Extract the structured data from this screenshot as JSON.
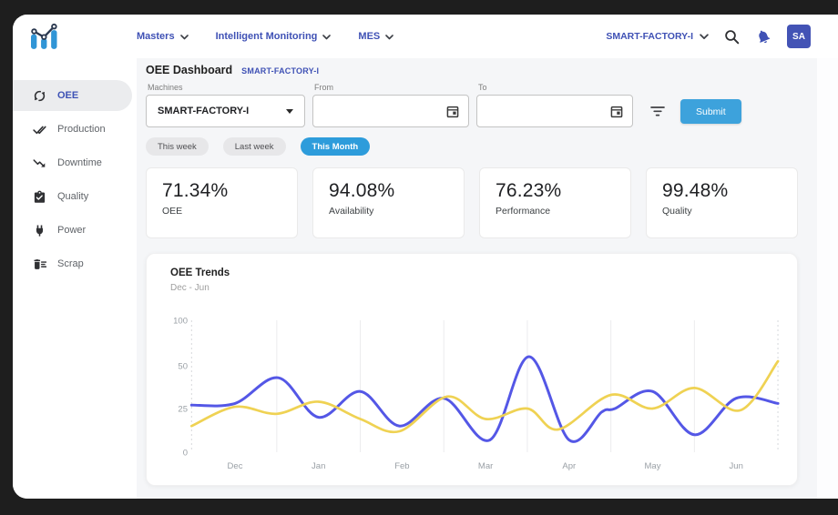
{
  "topnav": {
    "menus": [
      {
        "label": "Masters"
      },
      {
        "label": "Intelligent Monitoring"
      },
      {
        "label": "MES"
      }
    ],
    "factory_selector": "SMART-FACTORY-I",
    "avatar": "SA"
  },
  "sidebar": {
    "items": [
      {
        "label": "OEE",
        "icon": "sync-icon",
        "active": true
      },
      {
        "label": "Production",
        "icon": "double-check-icon",
        "active": false
      },
      {
        "label": "Downtime",
        "icon": "trending-down-icon",
        "active": false
      },
      {
        "label": "Quality",
        "icon": "clipboard-check-icon",
        "active": false
      },
      {
        "label": "Power",
        "icon": "power-plug-icon",
        "active": false
      },
      {
        "label": "Scrap",
        "icon": "trash-sweep-icon",
        "active": false
      }
    ]
  },
  "page": {
    "title": "OEE Dashboard",
    "subtitle": "SMART-FACTORY-I",
    "filters": {
      "machines_label": "Machines",
      "machines_value": "SMART-FACTORY-I",
      "from_label": "From",
      "from_value": "",
      "to_label": "To",
      "to_value": "",
      "submit_label": "Submit"
    },
    "quick_ranges": [
      {
        "label": "This week",
        "active": false
      },
      {
        "label": "Last week",
        "active": false
      },
      {
        "label": "This Month",
        "active": true
      }
    ],
    "kpis": [
      {
        "value": "71.34%",
        "label": "OEE"
      },
      {
        "value": "94.08%",
        "label": "Availability"
      },
      {
        "value": "76.23%",
        "label": "Performance"
      },
      {
        "value": "99.48%",
        "label": "Quality"
      }
    ]
  },
  "chart_data": {
    "type": "line",
    "title": "OEE Trends",
    "subtitle": "Dec - Jun",
    "x_labels": [
      "Dec",
      "Jan",
      "Feb",
      "Mar",
      "Apr",
      "May",
      "Jun"
    ],
    "y_ticks": [
      100,
      50,
      25,
      0
    ],
    "ylim": [
      0,
      100
    ],
    "x_range": [
      -0.52,
      6.5
    ],
    "grid": "vertical-only",
    "legend": "none",
    "series": [
      {
        "name": "series-1-blue",
        "color": "#5457e6",
        "stroke_width": 3,
        "points": [
          [
            -0.52,
            27
          ],
          [
            0,
            28
          ],
          [
            0.52,
            43
          ],
          [
            1,
            20
          ],
          [
            1.5,
            35
          ],
          [
            1.97,
            15
          ],
          [
            2.5,
            31
          ],
          [
            3.05,
            7
          ],
          [
            3.52,
            60
          ],
          [
            4,
            7
          ],
          [
            4.39,
            23
          ],
          [
            4.55,
            25
          ],
          [
            5,
            35
          ],
          [
            5.5,
            10
          ],
          [
            6,
            31
          ],
          [
            6.5,
            28
          ]
        ]
      },
      {
        "name": "series-2-yellow",
        "color": "#efd253",
        "stroke_width": 2.7,
        "points": [
          [
            -0.52,
            15
          ],
          [
            0,
            26
          ],
          [
            0.5,
            22
          ],
          [
            1,
            29
          ],
          [
            1.5,
            19
          ],
          [
            1.97,
            12
          ],
          [
            2.54,
            32
          ],
          [
            3,
            19
          ],
          [
            3.5,
            25
          ],
          [
            3.87,
            13
          ],
          [
            4.5,
            33
          ],
          [
            5,
            25
          ],
          [
            5.5,
            37
          ],
          [
            6.05,
            24
          ],
          [
            6.5,
            55
          ]
        ]
      }
    ]
  },
  "colors": {
    "accent_indigo": "#3f51b5",
    "submit_blue": "#3da2dc",
    "chip_active_blue": "#2d9cdb",
    "logo_blue": "#3095d6",
    "frame_dark": "#1e1e1e",
    "main_bg": "#f5f6f8"
  }
}
